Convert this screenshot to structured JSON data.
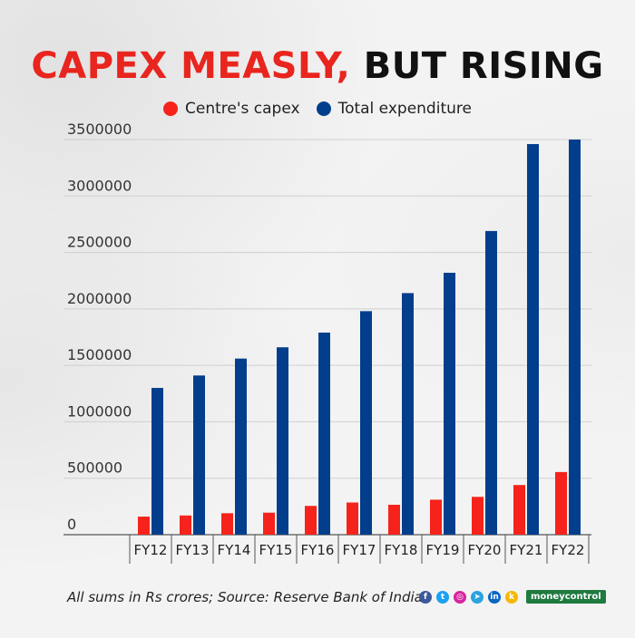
{
  "header": {
    "title_red": "CAPEX MEASLY,",
    "title_black": "BUT RISING"
  },
  "legend": {
    "capex": "Centre's capex",
    "total": "Total expenditure"
  },
  "colors": {
    "capex": "#f5231b",
    "total": "#033e8c",
    "title_red": "#e8251e",
    "grid": "#cfcfcf"
  },
  "chart_data": {
    "type": "bar",
    "categories": [
      "FY12",
      "FY13",
      "FY14",
      "FY15",
      "FY16",
      "FY17",
      "FY18",
      "FY19",
      "FY20",
      "FY21",
      "FY22"
    ],
    "series": [
      {
        "name": "Centre's capex",
        "values": [
          160000,
          170000,
          190000,
          195000,
          255000,
          285000,
          265000,
          310000,
          335000,
          440000,
          555000
        ]
      },
      {
        "name": "Total expenditure",
        "values": [
          1300000,
          1410000,
          1560000,
          1660000,
          1790000,
          1980000,
          2140000,
          2320000,
          2690000,
          3460000,
          3500000
        ]
      }
    ],
    "yticks": [
      "0",
      "500000",
      "1000000",
      "1500000",
      "2000000",
      "2500000",
      "3000000",
      "3500000"
    ],
    "ylim": [
      0,
      3500000
    ],
    "legend_position": "top-center",
    "grid": true
  },
  "footer": {
    "note": "All sums in Rs crores; Source: Reserve Bank of India",
    "brand": "moneycontrol",
    "icons": [
      {
        "name": "facebook-icon",
        "glyph": "f",
        "color": "#3b5998"
      },
      {
        "name": "twitter-icon",
        "glyph": "t",
        "color": "#1da1f2"
      },
      {
        "name": "instagram-icon",
        "glyph": "◎",
        "color": "#d6249f"
      },
      {
        "name": "telegram-icon",
        "glyph": "➤",
        "color": "#2aa3de"
      },
      {
        "name": "linkedin-icon",
        "glyph": "in",
        "color": "#0a66c2"
      },
      {
        "name": "koo-icon",
        "glyph": "k",
        "color": "#f5b800"
      }
    ]
  }
}
